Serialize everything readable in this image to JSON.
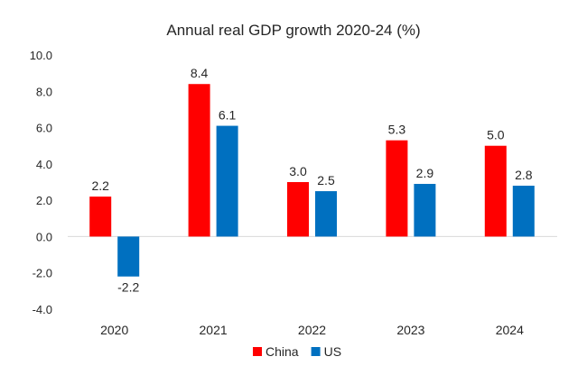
{
  "chart_data": {
    "type": "bar",
    "title": "Annual real GDP growth 2020-24 (%)",
    "xlabel": "",
    "ylabel": "",
    "categories": [
      "2020",
      "2021",
      "2022",
      "2023",
      "2024"
    ],
    "series": [
      {
        "name": "China",
        "color": "#ff0000",
        "values": [
          2.2,
          8.4,
          3.0,
          5.3,
          5.0
        ],
        "labels": [
          "2.2",
          "8.4",
          "3.0",
          "5.3",
          "5.0"
        ]
      },
      {
        "name": "US",
        "color": "#0070c0",
        "values": [
          -2.2,
          6.1,
          2.5,
          2.9,
          2.8
        ],
        "labels": [
          "-2.2",
          "6.1",
          "2.5",
          "2.9",
          "2.8"
        ]
      }
    ],
    "ylim": [
      -4,
      10
    ],
    "yticks": [
      10,
      8,
      6,
      4,
      2,
      0,
      -2,
      -4
    ],
    "ytick_labels": [
      "10.0",
      "8.0",
      "6.0",
      "4.0",
      "2.0",
      "0.0",
      "-2.0",
      "-4.0"
    ],
    "grid": false,
    "legend": "bottom-center"
  }
}
